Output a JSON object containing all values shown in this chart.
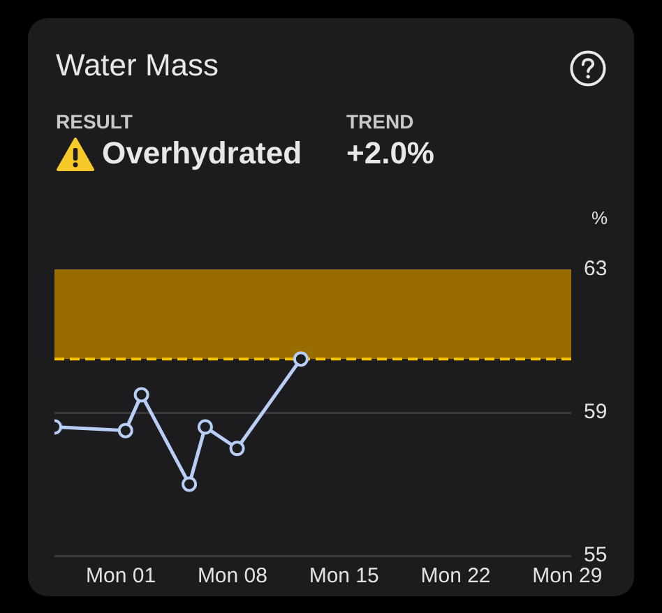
{
  "chart_data": {
    "type": "line",
    "title": "Water Mass",
    "ylabel": "%",
    "annotations": [
      "RESULT",
      "Overhydrated",
      "TREND",
      "+2.0%"
    ],
    "x": [
      "--03-27T20:00",
      "--04-01T07:00",
      "--04-02T07:00",
      "--04-05T07:00",
      "--04-06T07:00",
      "--04-08T07:00",
      "--04-12T07:00"
    ],
    "series": [
      {
        "color": "#b8cef5",
        "values": [
          58.6,
          58.5,
          59.5,
          57.0,
          58.6,
          58.0,
          60.5
        ]
      }
    ],
    "xlim": [
      "--03-27T20:00",
      "--04-29T06:00"
    ],
    "xticks": [
      {
        "value": "--04-01",
        "label": "Mon 01"
      },
      {
        "value": "--04-08",
        "label": "Mon 08"
      },
      {
        "value": "--04-15",
        "label": "Mon 15"
      },
      {
        "value": "--04-22",
        "label": "Mon 22"
      },
      {
        "value": "--04-29",
        "label": "Mon 29"
      }
    ],
    "ylim": [
      55,
      63
    ],
    "yticks": [
      55,
      59,
      63
    ],
    "bands": [
      {
        "axis": "y",
        "from": 60.5,
        "to": 63,
        "color": "#996c00"
      }
    ],
    "ref_lines": [
      {
        "axis": "y",
        "value": 60.5,
        "color": "#f5c400",
        "line_style": "dashed"
      }
    ],
    "grid": "y",
    "marker": "circle"
  }
}
